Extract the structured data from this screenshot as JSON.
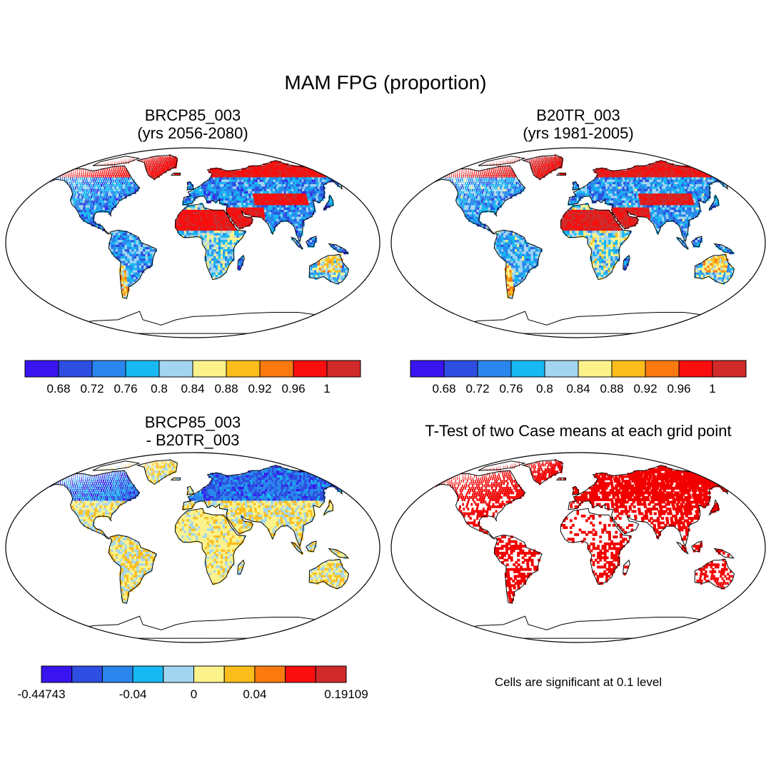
{
  "title": "MAM FPG (proportion)",
  "panels": [
    {
      "line1": "BRCP85_003",
      "line2": "(yrs 2056-2080)",
      "field": "future"
    },
    {
      "line1": "B20TR_003",
      "line2": "(yrs 1981-2005)",
      "field": "hist"
    },
    {
      "line1": "BRCP85_003",
      "line2": "- B20TR_003",
      "field": "diff"
    },
    {
      "line1": "T-Test of two Case means at each grid point",
      "line2": "",
      "field": "sig"
    }
  ],
  "note": "Cells are significant at 0.1 level",
  "colors": {
    "palette": [
      "#3a14f0",
      "#2d4ee0",
      "#2a86ec",
      "#18b8f2",
      "#a2d6f0",
      "#fbf28c",
      "#fbbd1c",
      "#fa7a10",
      "#f80e0e",
      "#d02a2a"
    ],
    "significant": "#f20000",
    "coastline": "#000000"
  },
  "colorbars": [
    {
      "name": "fpg-future",
      "labels": [
        "0.68",
        "0.72",
        "0.76",
        "0.8",
        "0.84",
        "0.88",
        "0.92",
        "0.96",
        "1"
      ]
    },
    {
      "name": "fpg-hist",
      "labels": [
        "0.68",
        "0.72",
        "0.76",
        "0.8",
        "0.84",
        "0.88",
        "0.92",
        "0.96",
        "1"
      ]
    },
    {
      "name": "fpg-diff",
      "labels": [
        "-0.44743",
        "-0.04",
        "0",
        "0.04",
        "0.19109"
      ]
    }
  ],
  "map": {
    "projection": "Robinson",
    "domain": "global"
  }
}
